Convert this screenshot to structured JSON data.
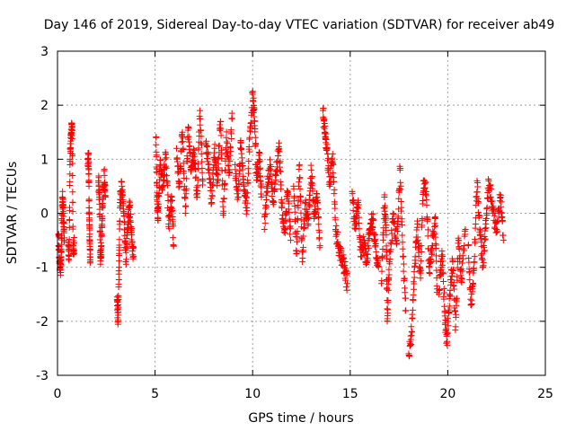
{
  "chart_data": {
    "type": "scatter",
    "title": "Day 146 of 2019, Sidereal Day-to-day VTEC variation (SDTVAR) for receiver ab49",
    "xlabel": "GPS time / hours",
    "ylabel": "SDTVAR / TECUs",
    "xlim": [
      0,
      25
    ],
    "ylim": [
      -3,
      3
    ],
    "x_ticks": [
      0,
      5,
      10,
      15,
      20,
      25
    ],
    "y_ticks": [
      -3,
      -2,
      -1,
      0,
      1,
      2,
      3
    ],
    "x_tick_labels": [
      "0",
      "5",
      "10",
      "15",
      "20",
      "25"
    ],
    "y_tick_labels": [
      "-3",
      "-2",
      "-1",
      "0",
      "1",
      "2",
      "3"
    ],
    "grid": true,
    "marker": "+",
    "marker_color": "#ff0000",
    "segments": [
      {
        "x0": 0.05,
        "x1": 0.35,
        "points": [
          [
            0.05,
            -0.4
          ],
          [
            0.1,
            -0.9
          ],
          [
            0.15,
            -1.05
          ],
          [
            0.2,
            -0.7
          ],
          [
            0.25,
            0.3
          ],
          [
            0.3,
            0.0
          ],
          [
            0.35,
            -0.5
          ]
        ]
      },
      {
        "x0": 0.5,
        "x1": 0.9,
        "points": [
          [
            0.55,
            -0.6
          ],
          [
            0.6,
            -0.8
          ],
          [
            0.65,
            1.2
          ],
          [
            0.7,
            1.5
          ],
          [
            0.75,
            1.6
          ],
          [
            0.8,
            -0.7
          ],
          [
            0.85,
            -0.55
          ]
        ]
      },
      {
        "x0": 1.5,
        "x1": 1.7,
        "points": [
          [
            1.55,
            1.0
          ],
          [
            1.6,
            0.95
          ],
          [
            1.62,
            0.1
          ],
          [
            1.65,
            -0.5
          ],
          [
            1.68,
            -0.9
          ]
        ]
      },
      {
        "x0": 2.0,
        "x1": 2.5,
        "points": [
          [
            2.1,
            0.6
          ],
          [
            2.15,
            0.3
          ],
          [
            2.2,
            -0.8
          ],
          [
            2.25,
            -0.6
          ],
          [
            2.3,
            0.1
          ],
          [
            2.4,
            0.7
          ],
          [
            2.45,
            0.3
          ]
        ]
      },
      {
        "x0": 3.0,
        "x1": 3.95,
        "points": [
          [
            3.05,
            -1.6
          ],
          [
            3.1,
            -2.0
          ],
          [
            3.15,
            -1.0
          ],
          [
            3.2,
            0.2
          ],
          [
            3.3,
            0.5
          ],
          [
            3.4,
            0.0
          ],
          [
            3.5,
            -0.9
          ],
          [
            3.6,
            -0.2
          ],
          [
            3.7,
            0.1
          ],
          [
            3.8,
            -0.4
          ],
          [
            3.9,
            -0.8
          ]
        ]
      },
      {
        "x0": 5.0,
        "x1": 6.0,
        "points": [
          [
            5.05,
            1.4
          ],
          [
            5.1,
            0.3
          ],
          [
            5.15,
            -0.1
          ],
          [
            5.25,
            0.9
          ],
          [
            5.4,
            0.5
          ],
          [
            5.55,
            1.1
          ],
          [
            5.7,
            -0.2
          ],
          [
            5.85,
            0.3
          ],
          [
            5.95,
            -0.6
          ]
        ]
      },
      {
        "x0": 6.0,
        "x1": 7.5,
        "points": [
          [
            6.1,
            1.2
          ],
          [
            6.25,
            0.5
          ],
          [
            6.4,
            1.5
          ],
          [
            6.55,
            0.0
          ],
          [
            6.7,
            1.6
          ],
          [
            6.85,
            0.8
          ],
          [
            7.0,
            1.1
          ],
          [
            7.15,
            0.3
          ],
          [
            7.3,
            1.9
          ],
          [
            7.45,
            0.6
          ]
        ]
      },
      {
        "x0": 7.5,
        "x1": 9.0,
        "points": [
          [
            7.6,
            1.3
          ],
          [
            7.75,
            0.9
          ],
          [
            7.9,
            0.2
          ],
          [
            8.05,
            1.2
          ],
          [
            8.2,
            0.6
          ],
          [
            8.35,
            1.7
          ],
          [
            8.5,
            0.0
          ],
          [
            8.65,
            1.4
          ],
          [
            8.8,
            0.8
          ],
          [
            8.95,
            1.75
          ]
        ]
      },
      {
        "x0": 9.0,
        "x1": 10.5,
        "points": [
          [
            9.1,
            0.9
          ],
          [
            9.25,
            0.3
          ],
          [
            9.4,
            1.3
          ],
          [
            9.55,
            0.5
          ],
          [
            9.7,
            0.1
          ],
          [
            9.85,
            1.4
          ],
          [
            10.0,
            2.2
          ],
          [
            10.1,
            1.7
          ],
          [
            10.2,
            0.7
          ],
          [
            10.35,
            1.0
          ],
          [
            10.45,
            0.3
          ]
        ]
      },
      {
        "x0": 10.5,
        "x1": 12.0,
        "points": [
          [
            10.6,
            -0.3
          ],
          [
            10.75,
            0.5
          ],
          [
            10.9,
            0.9
          ],
          [
            11.05,
            0.2
          ],
          [
            11.2,
            0.7
          ],
          [
            11.35,
            1.3
          ],
          [
            11.5,
            0.1
          ],
          [
            11.65,
            -0.3
          ],
          [
            11.8,
            0.4
          ],
          [
            11.95,
            -0.5
          ]
        ]
      },
      {
        "x0": 12.0,
        "x1": 13.5,
        "points": [
          [
            12.1,
            0.5
          ],
          [
            12.25,
            -0.7
          ],
          [
            12.4,
            0.9
          ],
          [
            12.55,
            -0.9
          ],
          [
            12.7,
            0.2
          ],
          [
            12.85,
            -0.2
          ],
          [
            13.0,
            0.8
          ],
          [
            13.15,
            -0.1
          ],
          [
            13.3,
            0.3
          ],
          [
            13.45,
            -0.6
          ]
        ]
      },
      {
        "x0": 13.5,
        "x1": 15.0,
        "points": [
          [
            13.6,
            1.9
          ],
          [
            13.7,
            1.5
          ],
          [
            13.8,
            1.2
          ],
          [
            13.95,
            0.5
          ],
          [
            14.1,
            1.1
          ],
          [
            14.25,
            -0.3
          ],
          [
            14.4,
            -0.6
          ],
          [
            14.55,
            -0.8
          ],
          [
            14.7,
            -1.0
          ],
          [
            14.85,
            -1.3
          ]
        ]
      },
      {
        "x0": 15.0,
        "x1": 16.5,
        "points": [
          [
            15.1,
            0.4
          ],
          [
            15.25,
            -0.2
          ],
          [
            15.4,
            0.2
          ],
          [
            15.55,
            -0.8
          ],
          [
            15.7,
            -0.5
          ],
          [
            15.85,
            -0.9
          ],
          [
            16.0,
            -0.3
          ],
          [
            16.15,
            -0.1
          ],
          [
            16.3,
            -0.6
          ],
          [
            16.45,
            -1.0
          ]
        ]
      },
      {
        "x0": 16.5,
        "x1": 18.0,
        "points": [
          [
            16.6,
            -1.3
          ],
          [
            16.75,
            0.3
          ],
          [
            16.85,
            -0.4
          ],
          [
            16.9,
            -2.0
          ],
          [
            17.0,
            -0.9
          ],
          [
            17.2,
            -0.1
          ],
          [
            17.4,
            -0.5
          ],
          [
            17.55,
            0.8
          ],
          [
            17.7,
            -0.8
          ],
          [
            17.85,
            -1.8
          ]
        ]
      },
      {
        "x0": 18.0,
        "x1": 19.5,
        "points": [
          [
            18.0,
            -2.6
          ],
          [
            18.15,
            -2.2
          ],
          [
            18.3,
            -1.0
          ],
          [
            18.45,
            -0.2
          ],
          [
            18.6,
            -1.2
          ],
          [
            18.75,
            0.6
          ],
          [
            18.9,
            0.4
          ],
          [
            19.05,
            -1.1
          ],
          [
            19.2,
            -0.6
          ],
          [
            19.35,
            -0.1
          ],
          [
            19.45,
            -1.4
          ]
        ]
      },
      {
        "x0": 19.5,
        "x1": 21.0,
        "points": [
          [
            19.55,
            -1.5
          ],
          [
            19.7,
            -0.7
          ],
          [
            19.85,
            -1.9
          ],
          [
            19.95,
            -2.4
          ],
          [
            20.1,
            -1.5
          ],
          [
            20.25,
            -0.9
          ],
          [
            20.4,
            -2.1
          ],
          [
            20.55,
            -0.5
          ],
          [
            20.7,
            -1.2
          ],
          [
            20.9,
            -0.3
          ]
        ]
      },
      {
        "x0": 21.0,
        "x1": 22.9,
        "points": [
          [
            21.05,
            -0.6
          ],
          [
            21.2,
            -1.7
          ],
          [
            21.35,
            -0.9
          ],
          [
            21.5,
            0.6
          ],
          [
            21.65,
            -0.4
          ],
          [
            21.8,
            -1.0
          ],
          [
            21.95,
            -0.2
          ],
          [
            22.1,
            0.6
          ],
          [
            22.3,
            0.1
          ],
          [
            22.5,
            -0.3
          ],
          [
            22.7,
            0.3
          ],
          [
            22.85,
            -0.5
          ]
        ]
      }
    ]
  }
}
